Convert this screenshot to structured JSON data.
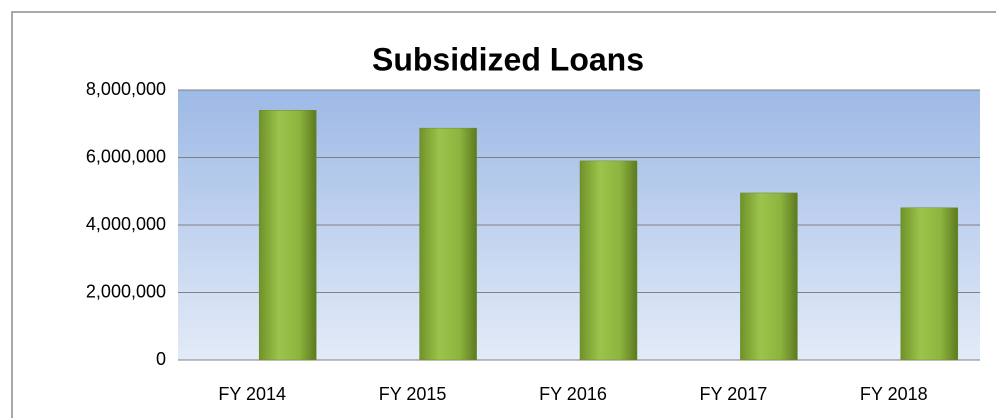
{
  "chart_data": {
    "type": "bar",
    "title": "Subsidized Loans",
    "categories": [
      "FY 2014",
      "FY 2015",
      "FY 2016",
      "FY 2017",
      "FY 2018"
    ],
    "values": [
      7400000,
      6870000,
      5900000,
      4950000,
      4510000
    ],
    "color": "#8db43e",
    "ylim": [
      0,
      8000000
    ],
    "yticks": [
      0,
      {
        "value": 2000000,
        "label": "2,000,000"
      },
      {
        "value": 4000000,
        "label": "4,000,000"
      },
      {
        "value": 6000000,
        "label": "6,000,000"
      },
      {
        "value": 8000000,
        "label": "8,000,000"
      }
    ],
    "grid": true
  }
}
